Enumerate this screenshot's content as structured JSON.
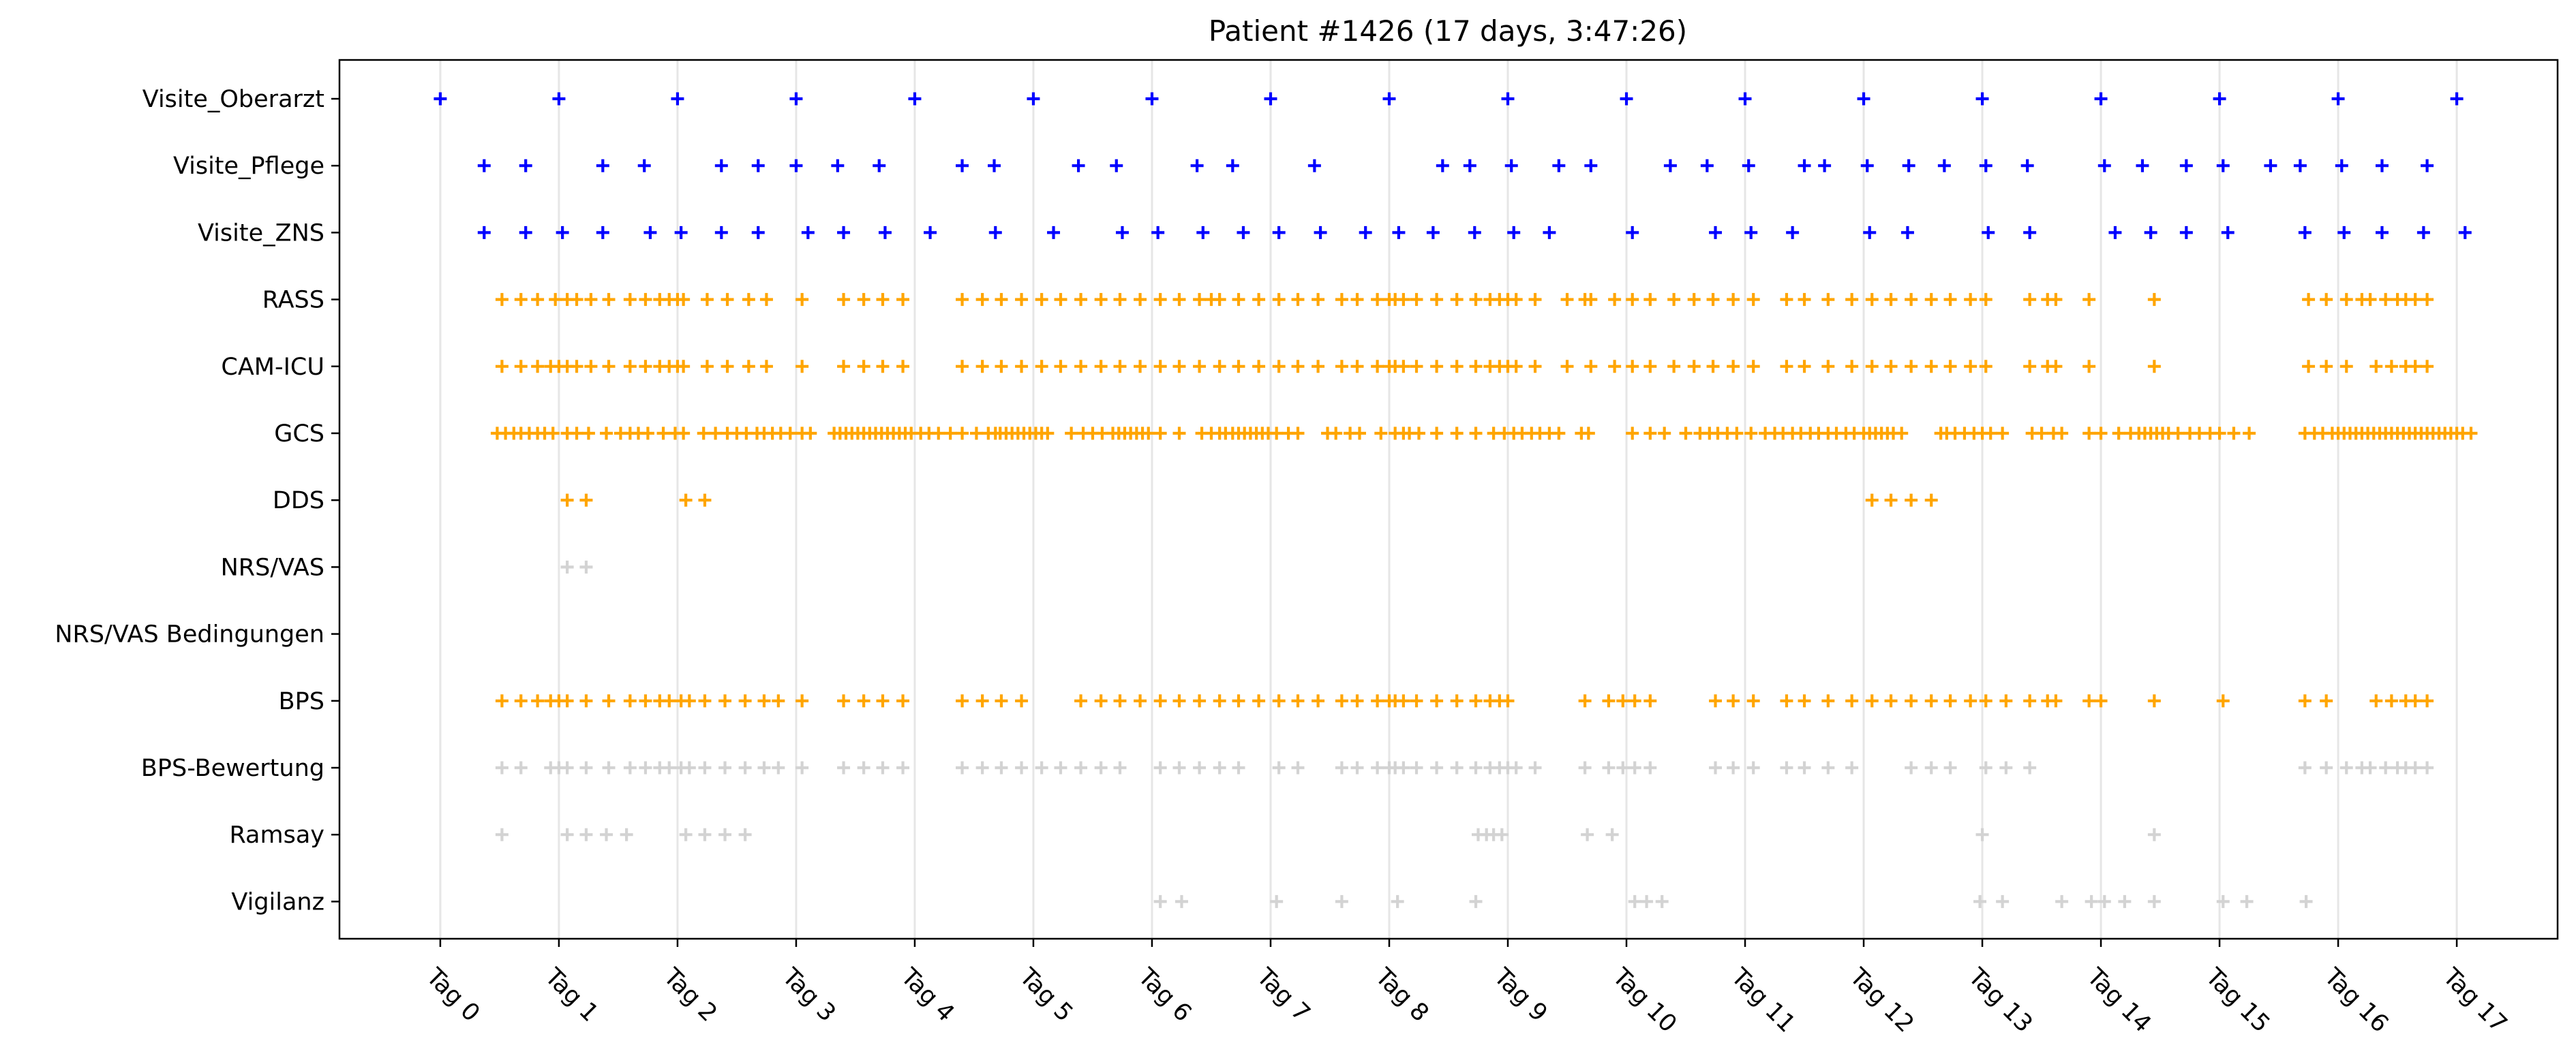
{
  "chart_data": {
    "type": "scatter",
    "title": "Patient #1426 (17 days, 3:47:26)",
    "xlabel": "",
    "ylabel": "",
    "xlim": [
      -0.85,
      17.85
    ],
    "x_ticks": [
      0,
      1,
      2,
      3,
      4,
      5,
      6,
      7,
      8,
      9,
      10,
      11,
      12,
      13,
      14,
      15,
      16,
      17
    ],
    "x_tick_labels": [
      "Tag 0",
      "Tag 1",
      "Tag 2",
      "Tag 3",
      "Tag 4",
      "Tag 5",
      "Tag 6",
      "Tag 7",
      "Tag 8",
      "Tag 9",
      "Tag 10",
      "Tag 11",
      "Tag 12",
      "Tag 13",
      "Tag 14",
      "Tag 15",
      "Tag 16",
      "Tag 17"
    ],
    "categories": [
      "Visite_Oberarzt",
      "Visite_Pflege",
      "Visite_ZNS",
      "RASS",
      "CAM-ICU",
      "GCS",
      "DDS",
      "NRS/VAS",
      "NRS/VAS Bedingungen",
      "BPS",
      "BPS-Bewertung",
      "Ramsay",
      "Vigilanz"
    ],
    "grid": "vertical",
    "marker": "+",
    "colors": {
      "blue": "#0000ff",
      "orange": "#ffa500",
      "gray": "#d3d3d3"
    },
    "series": [
      {
        "category": "Visite_Oberarzt",
        "color": "blue",
        "x": [
          0,
          1,
          2,
          3,
          4,
          5,
          6,
          7,
          8,
          9,
          10,
          11,
          12,
          13,
          14,
          15,
          16,
          17
        ]
      },
      {
        "category": "Visite_Pflege",
        "color": "blue",
        "x": [
          0.37,
          0.72,
          1.37,
          1.72,
          2.37,
          2.68,
          3,
          3.35,
          3.7,
          4.4,
          4.67,
          5.38,
          5.7,
          6.38,
          6.68,
          7.37,
          8.45,
          8.68,
          9.03,
          9.43,
          9.7,
          10.37,
          10.68,
          11.03,
          11.5,
          11.67,
          12.03,
          12.38,
          12.68,
          13.03,
          13.38,
          14.03,
          14.35,
          14.72,
          15.03,
          15.43,
          15.68,
          16.03,
          16.37,
          16.75
        ]
      },
      {
        "category": "Visite_ZNS",
        "color": "blue",
        "x": [
          0.37,
          0.72,
          1.03,
          1.37,
          1.77,
          2.03,
          2.37,
          2.68,
          3.1,
          3.4,
          3.75,
          4.13,
          4.68,
          5.17,
          5.75,
          6.05,
          6.43,
          6.77,
          7.07,
          7.42,
          7.8,
          8.08,
          8.37,
          8.72,
          9.05,
          9.35,
          10.05,
          10.75,
          11.05,
          11.4,
          12.05,
          12.37,
          13.05,
          13.4,
          14.12,
          14.42,
          14.72,
          15.07,
          15.72,
          16.05,
          16.37,
          16.72,
          17.07
        ]
      },
      {
        "category": "RASS",
        "color": "orange",
        "x": [
          0.52,
          0.68,
          0.82,
          0.97,
          1.07,
          1.15,
          1.27,
          1.42,
          1.6,
          1.73,
          1.85,
          1.93,
          2,
          2.05,
          2.25,
          2.42,
          2.6,
          2.75,
          3.05,
          3.4,
          3.57,
          3.73,
          3.9,
          4.4,
          4.57,
          4.73,
          4.9,
          5.07,
          5.23,
          5.4,
          5.57,
          5.73,
          5.9,
          6.07,
          6.23,
          6.4,
          6.5,
          6.57,
          6.73,
          6.9,
          7.07,
          7.23,
          7.4,
          7.6,
          7.73,
          7.9,
          8,
          8.05,
          8.12,
          8.23,
          8.4,
          8.57,
          8.73,
          8.85,
          8.93,
          9,
          9.07,
          9.23,
          9.5,
          9.65,
          9.7,
          9.9,
          10.05,
          10.2,
          10.4,
          10.57,
          10.73,
          10.9,
          11.07,
          11.35,
          11.5,
          11.7,
          11.9,
          12.07,
          12.23,
          12.4,
          12.57,
          12.73,
          12.9,
          13.03,
          13.4,
          13.55,
          13.62,
          13.9,
          14.45,
          15.75,
          15.9,
          16.07,
          16.2,
          16.27,
          16.4,
          16.5,
          16.57,
          16.65,
          16.75
        ]
      },
      {
        "category": "CAM-ICU",
        "color": "orange",
        "x": [
          0.52,
          0.68,
          0.82,
          0.93,
          1,
          1.07,
          1.15,
          1.27,
          1.42,
          1.6,
          1.73,
          1.85,
          1.93,
          2,
          2.05,
          2.25,
          2.42,
          2.6,
          2.75,
          3.05,
          3.4,
          3.57,
          3.73,
          3.9,
          4.4,
          4.57,
          4.73,
          4.9,
          5.07,
          5.23,
          5.4,
          5.57,
          5.73,
          5.9,
          6.07,
          6.23,
          6.4,
          6.57,
          6.73,
          6.9,
          7.07,
          7.23,
          7.4,
          7.6,
          7.73,
          7.9,
          8,
          8.05,
          8.12,
          8.23,
          8.4,
          8.57,
          8.73,
          8.85,
          8.93,
          9,
          9.07,
          9.23,
          9.5,
          9.7,
          9.9,
          10.05,
          10.2,
          10.4,
          10.57,
          10.73,
          10.9,
          11.07,
          11.35,
          11.5,
          11.7,
          11.9,
          12.07,
          12.23,
          12.4,
          12.57,
          12.73,
          12.9,
          13.03,
          13.4,
          13.55,
          13.62,
          13.9,
          14.45,
          15.75,
          15.9,
          16.07,
          16.32,
          16.45,
          16.57,
          16.65,
          16.75
        ]
      },
      {
        "category": "GCS",
        "color": "orange",
        "x": [
          0.48,
          0.55,
          0.62,
          0.68,
          0.75,
          0.82,
          0.88,
          0.95,
          1.07,
          1.15,
          1.25,
          1.4,
          1.52,
          1.6,
          1.67,
          1.75,
          1.88,
          1.98,
          2.05,
          2.22,
          2.32,
          2.42,
          2.5,
          2.58,
          2.67,
          2.73,
          2.8,
          2.87,
          2.95,
          3.05,
          3.12,
          3.32,
          3.37,
          3.42,
          3.47,
          3.52,
          3.57,
          3.62,
          3.67,
          3.72,
          3.77,
          3.82,
          3.87,
          3.92,
          3.97,
          4.05,
          4.12,
          4.2,
          4.3,
          4.4,
          4.52,
          4.62,
          4.68,
          4.72,
          4.77,
          4.82,
          4.87,
          4.92,
          4.97,
          5.02,
          5.07,
          5.12,
          5.32,
          5.42,
          5.5,
          5.58,
          5.67,
          5.72,
          5.77,
          5.82,
          5.87,
          5.92,
          5.97,
          6.07,
          6.23,
          6.42,
          6.5,
          6.57,
          6.62,
          6.68,
          6.73,
          6.78,
          6.83,
          6.88,
          6.93,
          6.98,
          7.05,
          7.15,
          7.23,
          7.48,
          7.55,
          7.67,
          7.75,
          7.93,
          8.05,
          8.12,
          8.17,
          8.25,
          8.4,
          8.57,
          8.73,
          8.88,
          8.97,
          9.05,
          9.12,
          9.2,
          9.27,
          9.35,
          9.43,
          9.62,
          9.68,
          10.05,
          10.2,
          10.32,
          10.5,
          10.62,
          10.7,
          10.77,
          10.85,
          10.93,
          11.05,
          11.17,
          11.25,
          11.32,
          11.4,
          11.47,
          11.55,
          11.62,
          11.7,
          11.77,
          11.85,
          11.92,
          12,
          12.05,
          12.1,
          12.15,
          12.2,
          12.25,
          12.32,
          12.65,
          12.7,
          12.77,
          12.85,
          12.93,
          13,
          13.07,
          13.17,
          13.42,
          13.5,
          13.6,
          13.67,
          13.9,
          14,
          14.15,
          14.25,
          14.32,
          14.37,
          14.42,
          14.47,
          14.52,
          14.57,
          14.65,
          14.75,
          14.83,
          14.92,
          15,
          15.12,
          15.25,
          15.72,
          15.8,
          15.87,
          15.95,
          16,
          16.05,
          16.1,
          16.15,
          16.2,
          16.25,
          16.3,
          16.35,
          16.4,
          16.45,
          16.5,
          16.55,
          16.6,
          16.65,
          16.7,
          16.75,
          16.8,
          16.85,
          16.9,
          16.95,
          17,
          17.05,
          17.12
        ]
      },
      {
        "category": "DDS",
        "color": "orange",
        "x": [
          1.07,
          1.23,
          2.07,
          2.23,
          12.07,
          12.23,
          12.4,
          12.57
        ]
      },
      {
        "category": "NRS/VAS",
        "color": "gray",
        "x": [
          1.07,
          1.23
        ]
      },
      {
        "category": "NRS/VAS Bedingungen",
        "color": "gray",
        "x": []
      },
      {
        "category": "BPS",
        "color": "orange",
        "x": [
          0.52,
          0.68,
          0.82,
          0.93,
          1,
          1.07,
          1.23,
          1.42,
          1.6,
          1.73,
          1.85,
          1.93,
          2.03,
          2.1,
          2.23,
          2.4,
          2.57,
          2.73,
          2.85,
          3.05,
          3.4,
          3.57,
          3.73,
          3.9,
          4.4,
          4.57,
          4.73,
          4.9,
          5.4,
          5.57,
          5.73,
          5.9,
          6.07,
          6.23,
          6.4,
          6.57,
          6.73,
          6.9,
          7.07,
          7.23,
          7.4,
          7.6,
          7.73,
          7.9,
          8,
          8.05,
          8.12,
          8.23,
          8.4,
          8.57,
          8.73,
          8.85,
          8.93,
          9,
          9.65,
          9.85,
          9.97,
          10.07,
          10.2,
          10.75,
          10.9,
          11.07,
          11.35,
          11.5,
          11.7,
          11.9,
          12.07,
          12.23,
          12.4,
          12.57,
          12.73,
          12.9,
          13.03,
          13.2,
          13.4,
          13.55,
          13.62,
          13.9,
          14,
          14.45,
          15.03,
          15.72,
          15.9,
          16.32,
          16.45,
          16.57,
          16.65,
          16.75
        ]
      },
      {
        "category": "BPS-Bewertung",
        "color": "gray",
        "x": [
          0.52,
          0.68,
          0.93,
          1,
          1.07,
          1.23,
          1.42,
          1.6,
          1.73,
          1.85,
          1.93,
          2.03,
          2.1,
          2.23,
          2.4,
          2.57,
          2.73,
          2.85,
          3.05,
          3.4,
          3.57,
          3.73,
          3.9,
          4.4,
          4.57,
          4.73,
          4.9,
          5.07,
          5.23,
          5.4,
          5.57,
          5.73,
          6.07,
          6.23,
          6.4,
          6.57,
          6.73,
          7.07,
          7.23,
          7.6,
          7.73,
          7.9,
          8,
          8.05,
          8.12,
          8.23,
          8.4,
          8.57,
          8.73,
          8.85,
          8.93,
          9,
          9.07,
          9.23,
          9.65,
          9.85,
          9.97,
          10.07,
          10.2,
          10.75,
          10.9,
          11.07,
          11.35,
          11.5,
          11.7,
          11.9,
          12.4,
          12.57,
          12.73,
          13.03,
          13.2,
          13.4,
          15.72,
          15.9,
          16.07,
          16.2,
          16.27,
          16.4,
          16.5,
          16.57,
          16.65,
          16.75
        ]
      },
      {
        "category": "Ramsay",
        "color": "gray",
        "x": [
          0.52,
          1.07,
          1.23,
          1.4,
          1.57,
          2.07,
          2.23,
          2.4,
          2.57,
          8.75,
          8.82,
          8.88,
          8.95,
          9.67,
          9.88,
          13,
          14.45
        ]
      },
      {
        "category": "Vigilanz",
        "color": "gray",
        "x": [
          6.07,
          6.25,
          7.05,
          7.6,
          8.07,
          8.73,
          10.07,
          10.17,
          10.3,
          12.98,
          13.17,
          13.67,
          13.92,
          14.03,
          14.2,
          14.45,
          15.03,
          15.23,
          15.73
        ]
      }
    ]
  }
}
